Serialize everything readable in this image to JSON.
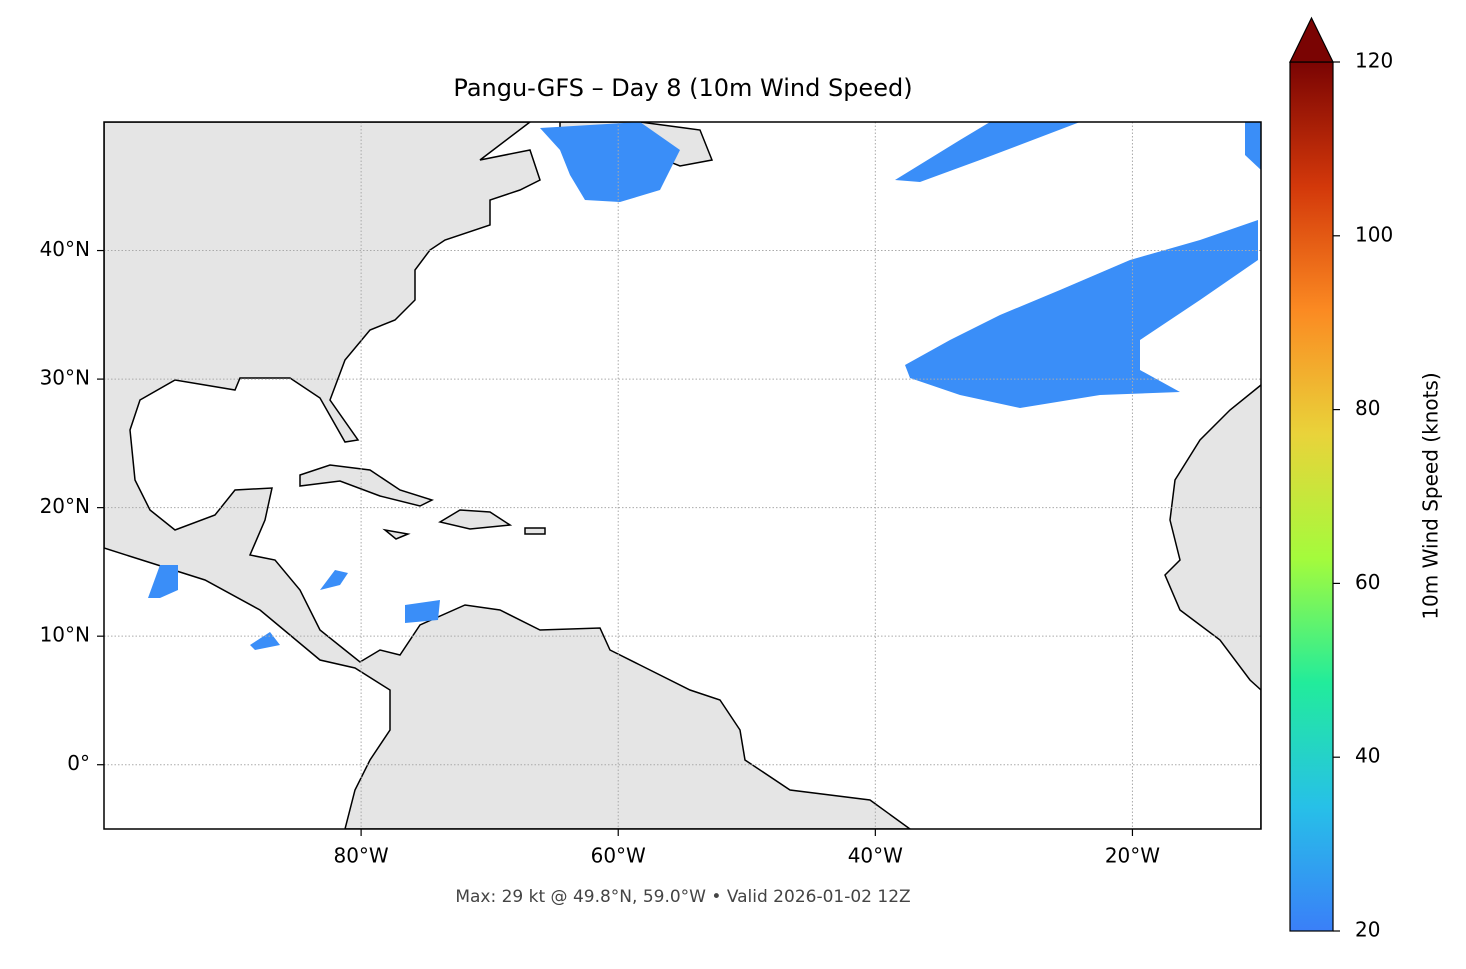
{
  "chart_data": {
    "type": "map",
    "title": "Pangu-GFS – Day 8 (10m Wind Speed)",
    "annotation": "Max: 29 kt @ 49.8°N, 59.0°W • Valid 2026-01-02 12Z",
    "xlim": [
      -100,
      -10
    ],
    "ylim": [
      -5,
      50
    ],
    "xticks": [
      {
        "value": -80,
        "label": "80°W"
      },
      {
        "value": -60,
        "label": "60°W"
      },
      {
        "value": -40,
        "label": "40°W"
      },
      {
        "value": -20,
        "label": "20°W"
      }
    ],
    "yticks": [
      {
        "value": 0,
        "label": "0°"
      },
      {
        "value": 10,
        "label": "10°N"
      },
      {
        "value": 20,
        "label": "20°N"
      },
      {
        "value": 30,
        "label": "30°N"
      },
      {
        "value": 40,
        "label": "40°N"
      }
    ],
    "grid": true,
    "colorbar": {
      "label": "10m Wind Speed (knots)",
      "lim": [
        20,
        120
      ],
      "ticks": [
        20,
        40,
        60,
        80,
        100,
        120
      ],
      "colors": [
        "#3a7ff8",
        "#27c0e8",
        "#22ec9b",
        "#a4fb3c",
        "#e9d33a",
        "#fb8a22",
        "#d3380a",
        "#7a0403"
      ],
      "extend": "max"
    }
  }
}
